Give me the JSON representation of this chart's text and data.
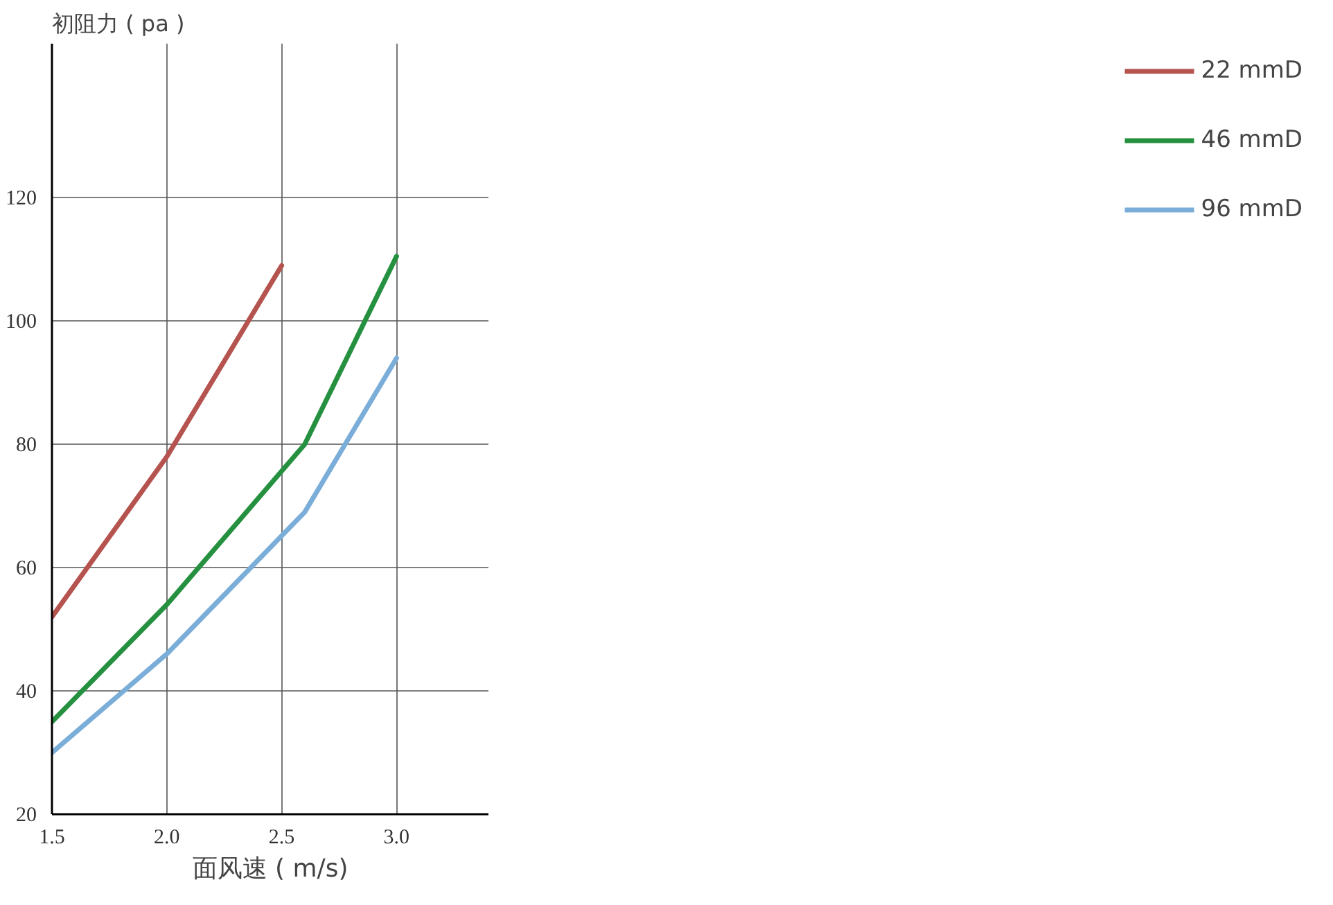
{
  "chart_data": {
    "type": "line",
    "ylabel": "初阻力 ( pa )",
    "xlabel": "面风速 ( m/s)",
    "xlim": [
      1.5,
      3.4
    ],
    "ylim": [
      20,
      145
    ],
    "xticks": [
      {
        "value": 1.5,
        "label": "1.5"
      },
      {
        "value": 2.0,
        "label": "2.0"
      },
      {
        "value": 2.5,
        "label": "2.5"
      },
      {
        "value": 3.0,
        "label": "3.0"
      }
    ],
    "yticks": [
      20,
      40,
      60,
      80,
      100,
      120
    ],
    "grid": true,
    "legend": "right",
    "line_style": "solid",
    "marker": "none",
    "series": [
      {
        "name": "22 mmD",
        "color": "#b5534f",
        "x": [
          1.5,
          2.0,
          2.5
        ],
        "values": [
          52,
          78,
          109
        ]
      },
      {
        "name": "46 mmD",
        "color": "#25903f",
        "x": [
          1.5,
          2.0,
          2.6,
          3.0
        ],
        "values": [
          35,
          54,
          80,
          110.5
        ]
      },
      {
        "name": "96 mmD",
        "color": "#7aaed9",
        "x": [
          1.5,
          2.0,
          2.6,
          3.0
        ],
        "values": [
          30,
          46,
          69,
          94
        ]
      }
    ]
  }
}
